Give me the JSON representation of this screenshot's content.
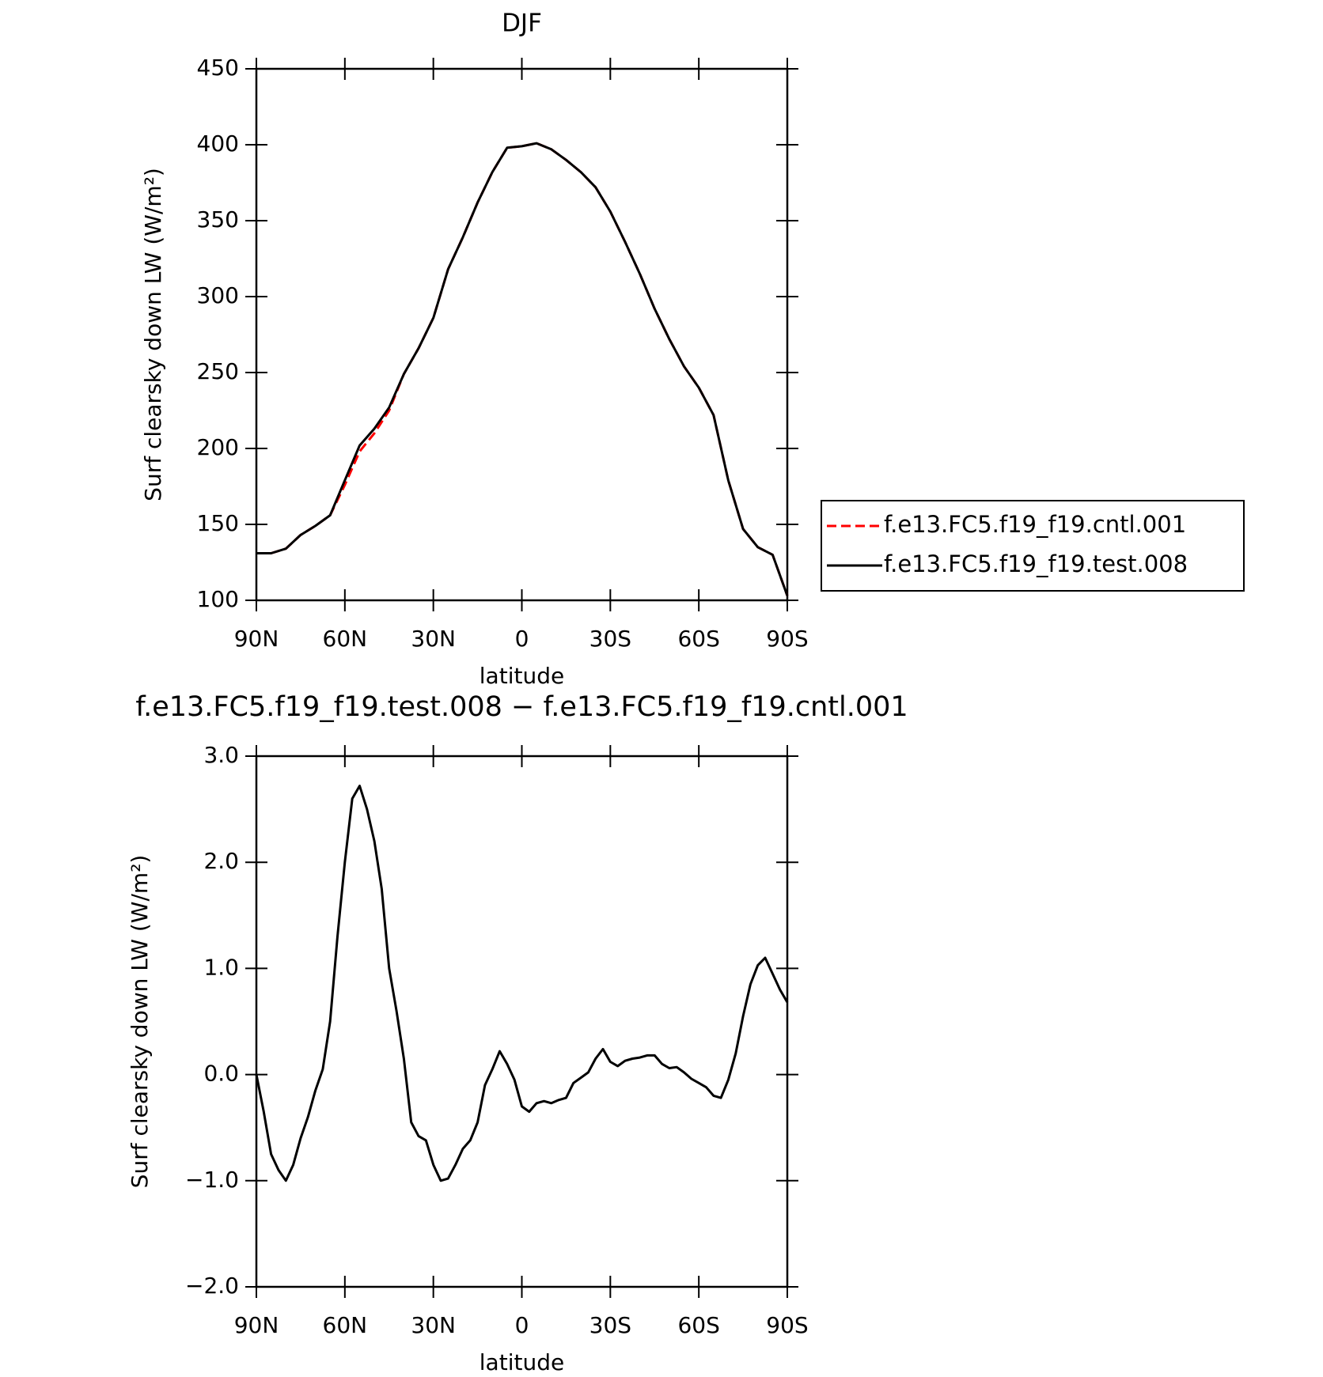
{
  "chart_data": [
    {
      "type": "line",
      "title": "DJF",
      "xlabel": "latitude",
      "ylabel": "Surf clearsky down LW (W/m²)",
      "x": [
        90,
        85,
        80,
        75,
        70,
        65,
        60,
        55,
        50,
        45,
        40,
        35,
        30,
        25,
        20,
        15,
        10,
        5,
        0,
        -5,
        -10,
        -15,
        -20,
        -25,
        -30,
        -35,
        -40,
        -45,
        -50,
        -55,
        -60,
        -65,
        -70,
        -75,
        -80,
        -85,
        -90
      ],
      "series": [
        {
          "name": "f.e13.FC5.f19_f19.cntl.001",
          "color": "#ff0000",
          "dash": true,
          "values": [
            131,
            131,
            134,
            143,
            149,
            156,
            176,
            198,
            210,
            225,
            249,
            266,
            286,
            318,
            339,
            362,
            382,
            398,
            399,
            401,
            397,
            390,
            382,
            372,
            356,
            336,
            315,
            292,
            272,
            254,
            240,
            222,
            179,
            147,
            135,
            130,
            103
          ]
        },
        {
          "name": "f.e13.FC5.f19_f19.test.008",
          "color": "#000000",
          "dash": false,
          "values": [
            131,
            131,
            134,
            143,
            149,
            156,
            179,
            202,
            213,
            227,
            249,
            266,
            286,
            318,
            339,
            362,
            382,
            398,
            399,
            401,
            397,
            390,
            382,
            372,
            356,
            336,
            315,
            292,
            272,
            254,
            240,
            222,
            179,
            147,
            135,
            130,
            103
          ]
        }
      ],
      "xlim": [
        90,
        -90
      ],
      "xticks": [
        {
          "value": 90,
          "label": "90N"
        },
        {
          "value": 60,
          "label": "60N"
        },
        {
          "value": 30,
          "label": "30N"
        },
        0,
        {
          "value": -30,
          "label": "30S"
        },
        {
          "value": -60,
          "label": "60S"
        },
        {
          "value": -90,
          "label": "90S"
        }
      ],
      "ylim": [
        100,
        450
      ],
      "yticks": [
        100,
        150,
        200,
        250,
        300,
        350,
        400,
        450
      ],
      "legend": "right"
    },
    {
      "type": "line",
      "title": "f.e13.FC5.f19_f19.test.008 − f.e13.FC5.f19_f19.cntl.001",
      "xlabel": "latitude",
      "ylabel": "Surf clearsky down LW (W/m²)",
      "x": [
        90,
        87.5,
        85,
        82.5,
        80,
        77.5,
        75,
        72.5,
        70,
        67.5,
        65,
        62.5,
        60,
        57.5,
        55,
        52.5,
        50,
        47.5,
        45,
        42.5,
        40,
        37.5,
        35,
        32.5,
        30,
        27.5,
        25,
        22.5,
        20,
        17.5,
        15,
        12.5,
        10,
        7.5,
        5,
        2.5,
        0,
        -2.5,
        -5,
        -7.5,
        -10,
        -12.5,
        -15,
        -17.5,
        -20,
        -22.5,
        -25,
        -27.5,
        -30,
        -32.5,
        -35,
        -37.5,
        -40,
        -42.5,
        -45,
        -47.5,
        -50,
        -52.5,
        -55,
        -57.5,
        -60,
        -62.5,
        -65,
        -67.5,
        -70,
        -72.5,
        -75,
        -77.5,
        -80,
        -82.5,
        -85,
        -87.5,
        -90
      ],
      "series": [
        {
          "name": "f.e13.FC5.f19_f19.test.008 − f.e13.FC5.f19_f19.cntl.001",
          "color": "#000000",
          "dash": false,
          "values": [
            0.0,
            -0.35,
            -0.75,
            -0.9,
            -1.0,
            -0.85,
            -0.6,
            -0.4,
            -0.15,
            0.05,
            0.5,
            1.3,
            2.0,
            2.6,
            2.72,
            2.5,
            2.2,
            1.75,
            1.0,
            0.6,
            0.15,
            -0.45,
            -0.58,
            -0.62,
            -0.85,
            -1.0,
            -0.98,
            -0.85,
            -0.7,
            -0.62,
            -0.45,
            -0.1,
            0.05,
            0.22,
            0.1,
            -0.05,
            -0.3,
            -0.35,
            -0.27,
            -0.25,
            -0.27,
            -0.24,
            -0.22,
            -0.08,
            -0.03,
            0.02,
            0.15,
            0.24,
            0.12,
            0.08,
            0.13,
            0.15,
            0.16,
            0.18,
            0.18,
            0.1,
            0.06,
            0.07,
            0.02,
            -0.04,
            -0.08,
            -0.12,
            -0.2,
            -0.22,
            -0.05,
            0.2,
            0.55,
            0.85,
            1.03,
            1.1,
            0.95,
            0.8,
            0.68
          ]
        }
      ],
      "xlim": [
        90,
        -90
      ],
      "xticks": [
        {
          "value": 90,
          "label": "90N"
        },
        {
          "value": 60,
          "label": "60N"
        },
        {
          "value": 30,
          "label": "30N"
        },
        0,
        {
          "value": -30,
          "label": "30S"
        },
        {
          "value": -60,
          "label": "60S"
        },
        {
          "value": -90,
          "label": "90S"
        }
      ],
      "ylim": [
        -2,
        3
      ],
      "yticks": [
        {
          "value": -2,
          "label": "−2.0"
        },
        {
          "value": -1,
          "label": "−1.0"
        },
        {
          "value": 0,
          "label": "0.0"
        },
        {
          "value": 1,
          "label": "1.0"
        },
        {
          "value": 2,
          "label": "2.0"
        },
        {
          "value": 3,
          "label": "3.0"
        }
      ]
    }
  ]
}
